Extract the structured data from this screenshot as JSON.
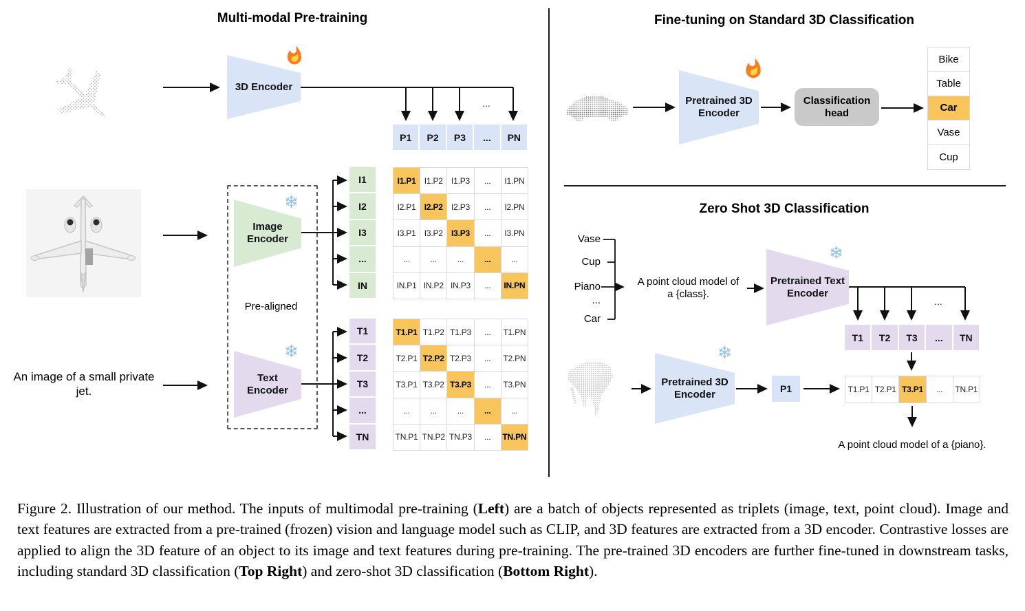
{
  "pretraining": {
    "title": "Multi-modal Pre-training",
    "encoder_3d": "3D Encoder",
    "dots": "...",
    "p_row": [
      "P1",
      "P2",
      "P3",
      "...",
      "PN"
    ],
    "image_encoder": "Image\nEncoder",
    "text_encoder": "Text\nEncoder",
    "pre_aligned": "Pre-aligned",
    "image_caption": "An image of a small\nprivate jet.",
    "i_col": [
      "I1",
      "I2",
      "I3",
      "...",
      "IN"
    ],
    "t_col": [
      "T1",
      "T2",
      "T3",
      "...",
      "TN"
    ],
    "image_matrix": [
      [
        "I1.P1",
        "I1.P2",
        "I1.P3",
        "...",
        "I1.PN"
      ],
      [
        "I2.P1",
        "I2.P2",
        "I2.P3",
        "...",
        "I2.PN"
      ],
      [
        "I3.P1",
        "I3.P2",
        "I3.P3",
        "...",
        "I3.PN"
      ],
      [
        "...",
        "...",
        "...",
        "...",
        "..."
      ],
      [
        "IN.P1",
        "IN.P2",
        "IN.P3",
        "...",
        "IN.PN"
      ]
    ],
    "text_matrix": [
      [
        "T1.P1",
        "T1.P2",
        "T1.P3",
        "...",
        "T1.PN"
      ],
      [
        "T2.P1",
        "T2.P2",
        "T2.P3",
        "...",
        "T2.PN"
      ],
      [
        "T3.P1",
        "T3.P2",
        "T3.P3",
        "...",
        "T3.PN"
      ],
      [
        "...",
        "...",
        "...",
        "...",
        "..."
      ],
      [
        "TN.P1",
        "TN.P2",
        "TN.P3",
        "...",
        "TN.PN"
      ]
    ]
  },
  "finetuning": {
    "title": "Fine-tuning on Standard 3D Classification",
    "encoder": "Pretrained 3D\nEncoder",
    "head": "Classification\nhead",
    "classes": [
      "Bike",
      "Table",
      "Car",
      "Vase",
      "Cup"
    ],
    "highlighted_class": "Car"
  },
  "zeroshot": {
    "title": "Zero Shot 3D Classification",
    "classes": [
      "Vase",
      "Cup",
      "Piano",
      "...",
      "Car"
    ],
    "prompt": "A point cloud model of\na {class}.",
    "text_encoder": "Pretrained Text\nEncoder",
    "encoder_3d": "Pretrained 3D\nEncoder",
    "p1": "P1",
    "dots": "...",
    "t_row": [
      "T1",
      "T2",
      "T3",
      "...",
      "TN"
    ],
    "result_row": [
      "T1.P1",
      "T2.P1",
      "T3.P1",
      "...",
      "TN.P1"
    ],
    "highlighted_result": "T3.P1",
    "result": "A point cloud model of a {piano}."
  },
  "icons": {
    "snowflake": "❄"
  },
  "colors": {
    "blue": "#d9e4f6",
    "green": "#d9ead3",
    "purple": "#e3daee",
    "orange": "#f8c45c",
    "head_gray": "#c9c9c9"
  },
  "caption": {
    "s1": "Figure 2. Illustration of our method. The inputs of multimodal pre-training (",
    "b1": "Left",
    "s2": ") are a batch of objects represented as triplets (image, text, point cloud). Image and text features are extracted from a pre-trained (frozen) vision and language model such as CLIP, and 3D features are extracted from a 3D encoder. Contrastive losses are applied to align the 3D feature of an object to its image and text features during pre-training. The pre-trained 3D encoders are further fine-tuned in downstream tasks, including standard 3D classification (",
    "b2": "Top Right",
    "s3": ") and zero-shot 3D classification (",
    "b3": "Bottom Right",
    "s4": ")."
  }
}
